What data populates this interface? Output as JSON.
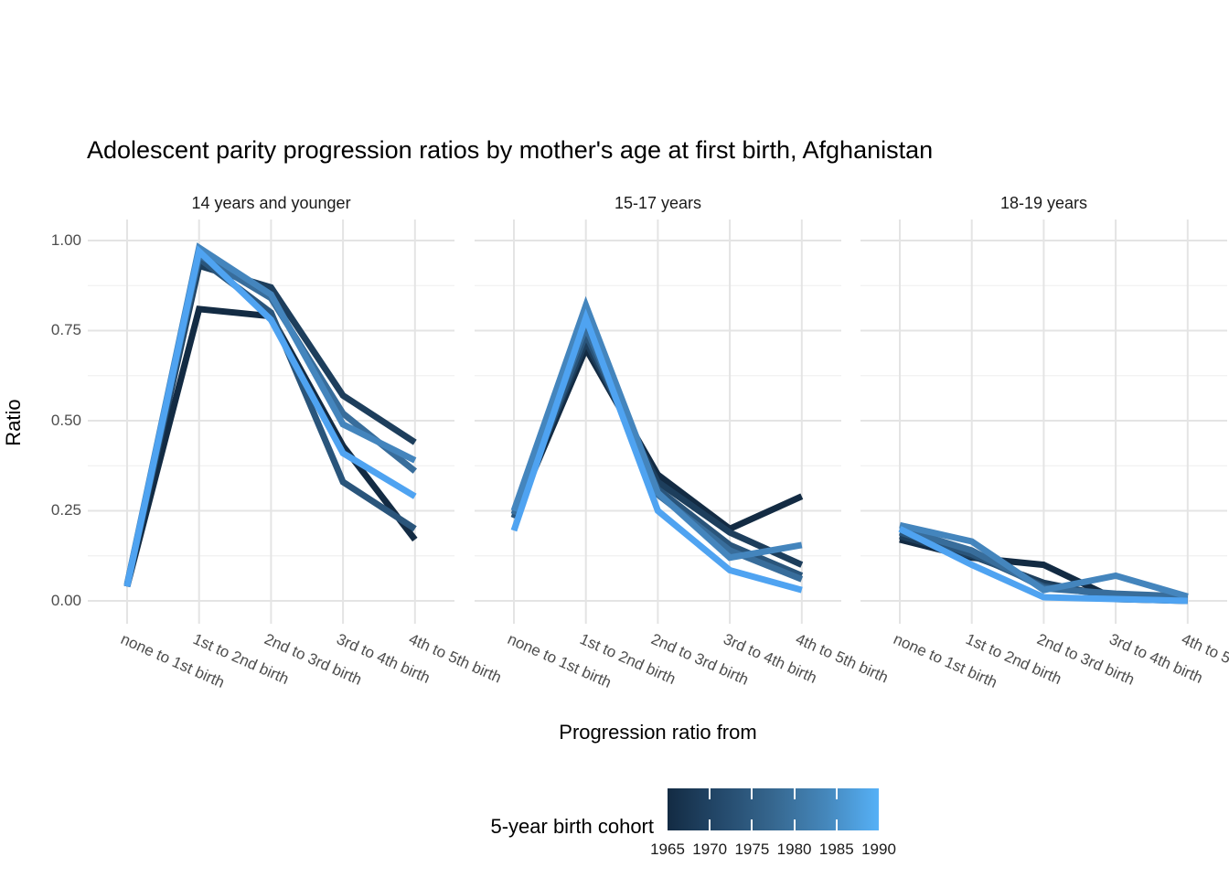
{
  "chart_data": {
    "type": "line",
    "title": "Adolescent parity progression ratios by mother's age at first birth,  Afghanistan",
    "xlabel": "Progression ratio from",
    "ylabel": "Ratio",
    "ylim": [
      0,
      1
    ],
    "grid": true,
    "ytick_labels": [
      "1.00",
      "0.75",
      "0.50",
      "0.25",
      "0.00"
    ],
    "ytick_values": [
      1.0,
      0.75,
      0.5,
      0.25,
      0.0
    ],
    "yminor_values": [
      0.125,
      0.375,
      0.625,
      0.875
    ],
    "categories": [
      "none to 1st birth",
      "1st to 2nd birth",
      "2nd to 3rd birth",
      "3rd to 4th birth",
      "4th to 5th birth"
    ],
    "cohort_colors": {
      "1965": "#132B43",
      "1970": "#1D3E5C",
      "1975": "#2A557B",
      "1980": "#386D9B",
      "1985": "#4485BD",
      "1990": "#4FA3F1"
    },
    "facets": [
      {
        "label": "14 years and younger",
        "series": [
          {
            "name": "1965",
            "values": [
              0.04,
              0.81,
              0.79,
              0.43,
              0.17
            ]
          },
          {
            "name": "1970",
            "values": [
              0.04,
              0.93,
              0.87,
              0.57,
              0.44
            ]
          },
          {
            "name": "1975",
            "values": [
              0.04,
              0.95,
              0.8,
              0.33,
              0.2
            ]
          },
          {
            "name": "1980",
            "values": [
              0.045,
              0.96,
              0.84,
              0.52,
              0.36
            ]
          },
          {
            "name": "1985",
            "values": [
              0.045,
              0.98,
              0.85,
              0.49,
              0.39
            ]
          },
          {
            "name": "1990",
            "values": [
              0.04,
              0.97,
              0.78,
              0.41,
              0.29
            ]
          }
        ]
      },
      {
        "label": "15-17 years",
        "series": [
          {
            "name": "1965",
            "values": [
              0.23,
              0.7,
              0.35,
              0.2,
              0.29
            ]
          },
          {
            "name": "1970",
            "values": [
              0.24,
              0.72,
              0.33,
              0.19,
              0.1
            ]
          },
          {
            "name": "1975",
            "values": [
              0.23,
              0.74,
              0.31,
              0.155,
              0.07
            ]
          },
          {
            "name": "1980",
            "values": [
              0.24,
              0.76,
              0.295,
              0.14,
              0.06
            ]
          },
          {
            "name": "1985",
            "values": [
              0.25,
              0.82,
              0.3,
              0.12,
              0.155
            ]
          },
          {
            "name": "1990",
            "values": [
              0.195,
              0.785,
              0.25,
              0.085,
              0.03
            ]
          }
        ]
      },
      {
        "label": "18-19 years",
        "series": [
          {
            "name": "1965",
            "values": [
              0.17,
              0.12,
              0.1,
              0.005,
              0.0
            ]
          },
          {
            "name": "1970",
            "values": [
              0.18,
              0.125,
              0.05,
              0.01,
              0.005
            ]
          },
          {
            "name": "1975",
            "values": [
              0.19,
              0.13,
              0.04,
              0.015,
              0.01
            ]
          },
          {
            "name": "1980",
            "values": [
              0.2,
              0.14,
              0.035,
              0.02,
              0.012
            ]
          },
          {
            "name": "1985",
            "values": [
              0.21,
              0.165,
              0.03,
              0.07,
              0.012
            ]
          },
          {
            "name": "1990",
            "values": [
              0.2,
              0.1,
              0.01,
              0.005,
              0.0
            ]
          }
        ]
      }
    ],
    "legend": {
      "title": "5-year birth cohort",
      "labels": [
        "1965",
        "1970",
        "1975",
        "1980",
        "1985",
        "1990"
      ],
      "gradient_low": "#132B43",
      "gradient_high": "#56B1F7",
      "position": "bottom"
    }
  }
}
